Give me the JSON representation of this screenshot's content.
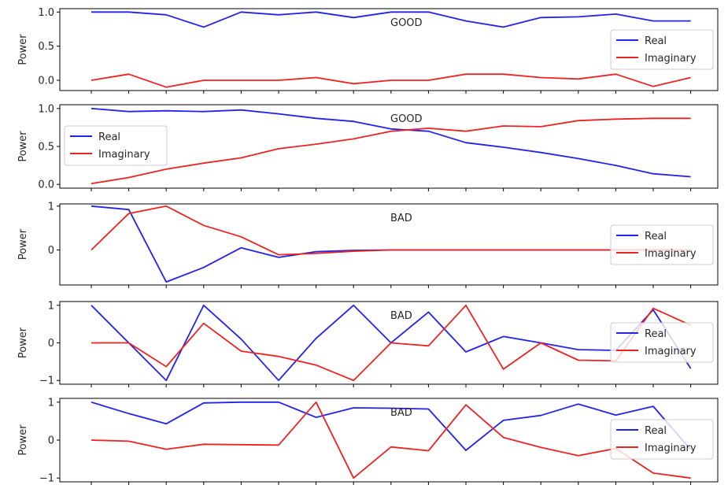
{
  "chart_data": [
    {
      "type": "line",
      "annotation": "GOOD",
      "ylabel": "Power",
      "ylim": [
        -0.15,
        1.05
      ],
      "yticks": [
        0.0,
        0.5,
        1.0
      ],
      "ytick_labels": [
        "0.0",
        "0.5",
        "1.0"
      ],
      "legend_position": "right",
      "x": [
        0,
        1,
        2,
        3,
        4,
        5,
        6,
        7,
        8,
        9,
        10,
        11,
        12,
        13,
        14,
        15,
        16
      ],
      "series": [
        {
          "name": "Real",
          "color": "#2222ee",
          "values": [
            1.0,
            1.0,
            0.96,
            0.78,
            1.0,
            0.96,
            1.0,
            0.92,
            1.0,
            1.0,
            0.87,
            0.78,
            0.92,
            0.93,
            0.97,
            0.87,
            0.87
          ]
        },
        {
          "name": "Imaginary",
          "color": "#ee2222",
          "values": [
            0.0,
            0.09,
            -0.1,
            0.0,
            0.0,
            0.0,
            0.04,
            -0.05,
            0.0,
            0.0,
            0.09,
            0.09,
            0.04,
            0.02,
            0.09,
            -0.09,
            0.04
          ]
        }
      ]
    },
    {
      "type": "line",
      "annotation": "GOOD",
      "ylabel": "Power",
      "ylim": [
        -0.05,
        1.05
      ],
      "yticks": [
        0.0,
        0.5,
        1.0
      ],
      "ytick_labels": [
        "0.0",
        "0.5",
        "1.0"
      ],
      "legend_position": "left",
      "x": [
        0,
        1,
        2,
        3,
        4,
        5,
        6,
        7,
        8,
        9,
        10,
        11,
        12,
        13,
        14,
        15,
        16
      ],
      "series": [
        {
          "name": "Real",
          "color": "#2222ee",
          "values": [
            1.0,
            0.96,
            0.97,
            0.96,
            0.98,
            0.93,
            0.87,
            0.83,
            0.73,
            0.7,
            0.55,
            0.49,
            0.42,
            0.34,
            0.25,
            0.14,
            0.1
          ]
        },
        {
          "name": "Imaginary",
          "color": "#ee2222",
          "values": [
            0.01,
            0.09,
            0.2,
            0.28,
            0.35,
            0.47,
            0.53,
            0.6,
            0.7,
            0.74,
            0.7,
            0.77,
            0.76,
            0.84,
            0.86,
            0.87,
            0.87
          ]
        }
      ]
    },
    {
      "type": "line",
      "annotation": "BAD",
      "ylabel": "Power",
      "ylim": [
        -0.8,
        1.05
      ],
      "yticks": [
        0,
        1
      ],
      "ytick_labels": [
        "0",
        "1"
      ],
      "legend_position": "right",
      "x": [
        0,
        1,
        2,
        3,
        4,
        5,
        6,
        7,
        8,
        9,
        10,
        11,
        12,
        13,
        14,
        15,
        16
      ],
      "series": [
        {
          "name": "Real",
          "color": "#2222ee",
          "values": [
            1.0,
            0.92,
            -0.73,
            -0.4,
            0.05,
            -0.17,
            -0.04,
            -0.01,
            0.0,
            0.0,
            0.0,
            0.0,
            0.0,
            0.0,
            0.0,
            0.0,
            0.0
          ]
        },
        {
          "name": "Imaginary",
          "color": "#ee2222",
          "values": [
            0.0,
            0.83,
            1.0,
            0.56,
            0.3,
            -0.11,
            -0.08,
            -0.03,
            0.0,
            0.0,
            0.0,
            0.0,
            0.0,
            0.0,
            0.0,
            0.0,
            0.0
          ]
        }
      ]
    },
    {
      "type": "line",
      "annotation": "BAD",
      "ylabel": "Power",
      "ylim": [
        -1.1,
        1.1
      ],
      "yticks": [
        -1,
        0,
        1
      ],
      "ytick_labels": [
        "−1",
        "0",
        "1"
      ],
      "legend_position": "right",
      "x": [
        0,
        1,
        2,
        3,
        4,
        5,
        6,
        7,
        8,
        9,
        10,
        11,
        12,
        13,
        14,
        15,
        16
      ],
      "series": [
        {
          "name": "Real",
          "color": "#2222ee",
          "values": [
            1.0,
            0.0,
            -1.0,
            1.0,
            0.1,
            -1.0,
            0.12,
            1.0,
            0.0,
            0.82,
            -0.24,
            0.17,
            0.0,
            -0.18,
            -0.2,
            0.88,
            -0.68
          ]
        },
        {
          "name": "Imaginary",
          "color": "#ee2222",
          "values": [
            0.0,
            0.0,
            -0.63,
            0.52,
            -0.22,
            -0.36,
            -0.59,
            -1.0,
            0.0,
            -0.08,
            1.0,
            -0.7,
            0.0,
            -0.46,
            -0.48,
            0.92,
            0.47
          ]
        }
      ]
    },
    {
      "type": "line",
      "annotation": "BAD",
      "ylabel": "Power",
      "ylim": [
        -1.1,
        1.1
      ],
      "yticks": [
        -1,
        0,
        1
      ],
      "ytick_labels": [
        "−1",
        "0",
        "1"
      ],
      "legend_position": "right",
      "x": [
        0,
        1,
        2,
        3,
        4,
        5,
        6,
        7,
        8,
        9,
        10,
        11,
        12,
        13,
        14,
        15,
        16
      ],
      "series": [
        {
          "name": "Real",
          "color": "#2222ee",
          "values": [
            1.0,
            0.7,
            0.43,
            0.98,
            1.0,
            1.0,
            0.6,
            0.85,
            0.84,
            0.82,
            -0.27,
            0.52,
            0.65,
            0.95,
            0.66,
            0.89,
            -0.25
          ]
        },
        {
          "name": "Imaginary",
          "color": "#ee2222",
          "values": [
            0.0,
            -0.03,
            -0.24,
            -0.11,
            -0.12,
            -0.13,
            1.0,
            -1.0,
            -0.18,
            -0.28,
            0.93,
            0.07,
            -0.19,
            -0.41,
            -0.22,
            -0.87,
            -1.0
          ]
        }
      ]
    }
  ]
}
